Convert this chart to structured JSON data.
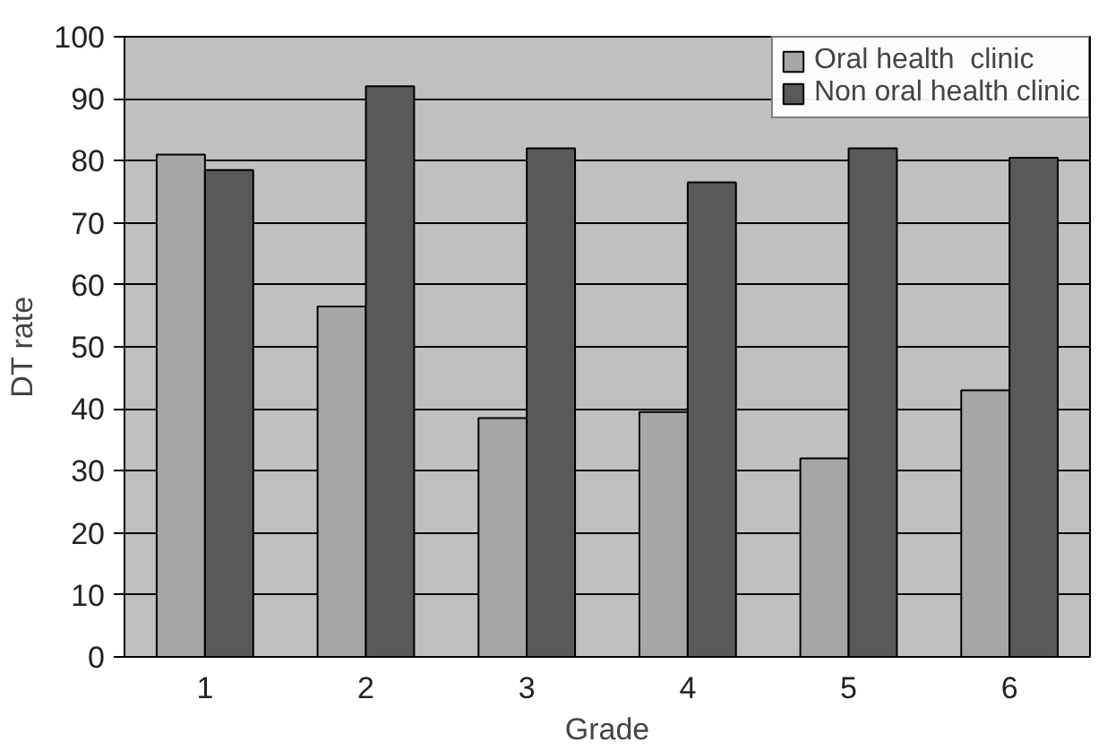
{
  "chart_data": {
    "type": "bar",
    "xlabel": "Grade",
    "ylabel": "DT rate",
    "categories": [
      "1",
      "2",
      "3",
      "4",
      "5",
      "6"
    ],
    "series": [
      {
        "name": "Oral health  clinic",
        "color": "#a6a6a6",
        "values": [
          81,
          56.5,
          38.5,
          39.5,
          32,
          43
        ]
      },
      {
        "name": "Non oral health clinic",
        "color": "#595959",
        "values": [
          78.5,
          92,
          82,
          76.5,
          82,
          80.5
        ]
      }
    ],
    "ylim": [
      0,
      100
    ],
    "yticks": [
      0,
      10,
      20,
      30,
      40,
      50,
      60,
      70,
      80,
      90,
      100
    ],
    "grid": "y",
    "legend": "top right"
  }
}
